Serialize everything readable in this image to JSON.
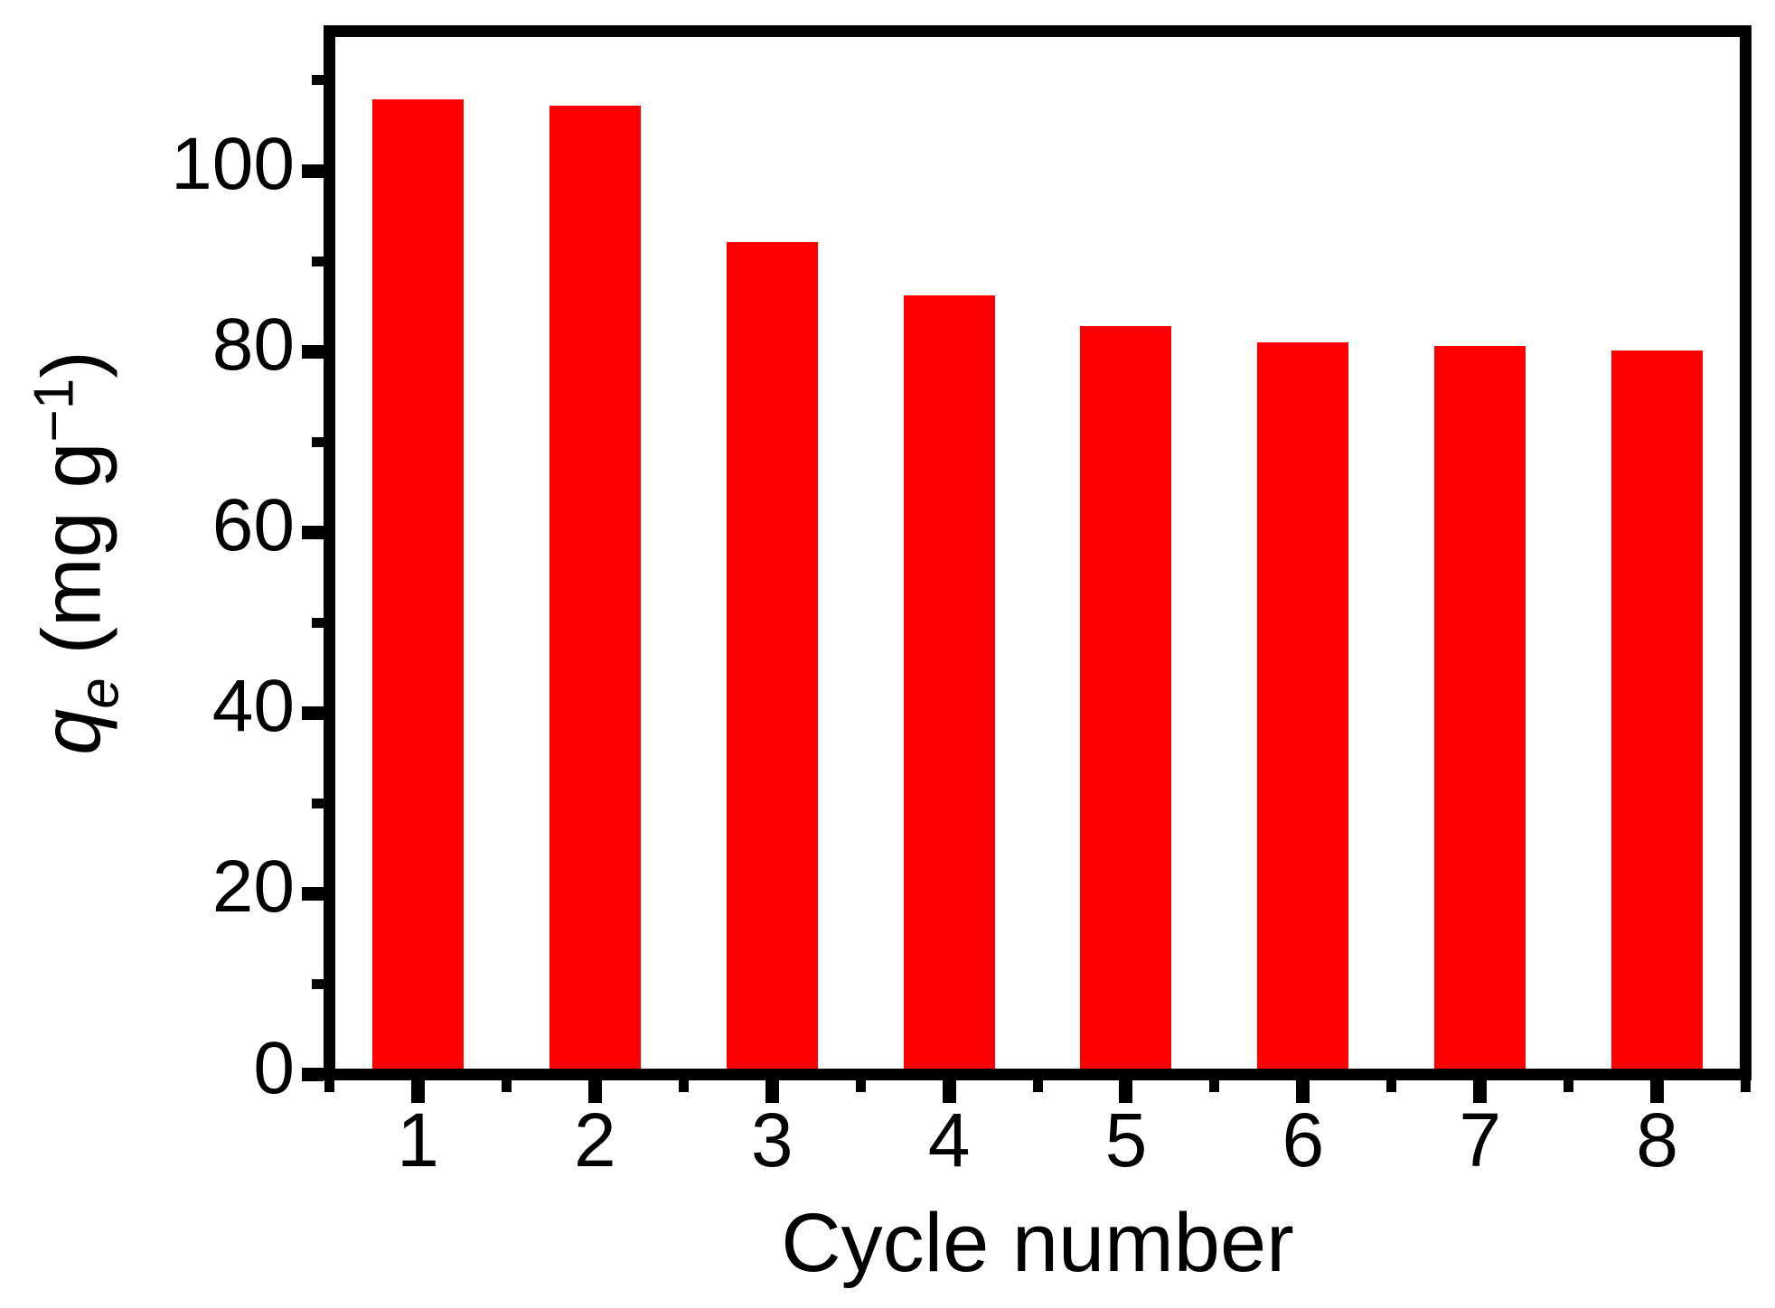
{
  "figure": {
    "background_color": "#FFFFFF",
    "axis_color": "#000000"
  },
  "chart_data": {
    "type": "bar",
    "title": "",
    "categories": [
      "1",
      "2",
      "3",
      "4",
      "5",
      "6",
      "7",
      "8"
    ],
    "values": [
      107.9,
      107.2,
      92.1,
      86.2,
      82.8,
      81.0,
      80.6,
      80.1
    ],
    "xlabel": "Cycle number",
    "ylabel": "qe (mg g-1)",
    "ylabel_parts": {
      "symbol": "q",
      "subscript": "e",
      "unit_open": " (mg g",
      "exponent": "−1",
      "unit_close": ")"
    },
    "ylim": [
      0,
      114.8
    ],
    "yticks_major": [
      0,
      20,
      40,
      60,
      80,
      100
    ],
    "yticks_minor": [
      10,
      30,
      50,
      70,
      90,
      110
    ],
    "ytick_labels": [
      "0",
      "20",
      "40",
      "60",
      "80",
      "100"
    ],
    "bar_color": "#FF0000",
    "grid": false,
    "legend": null
  }
}
